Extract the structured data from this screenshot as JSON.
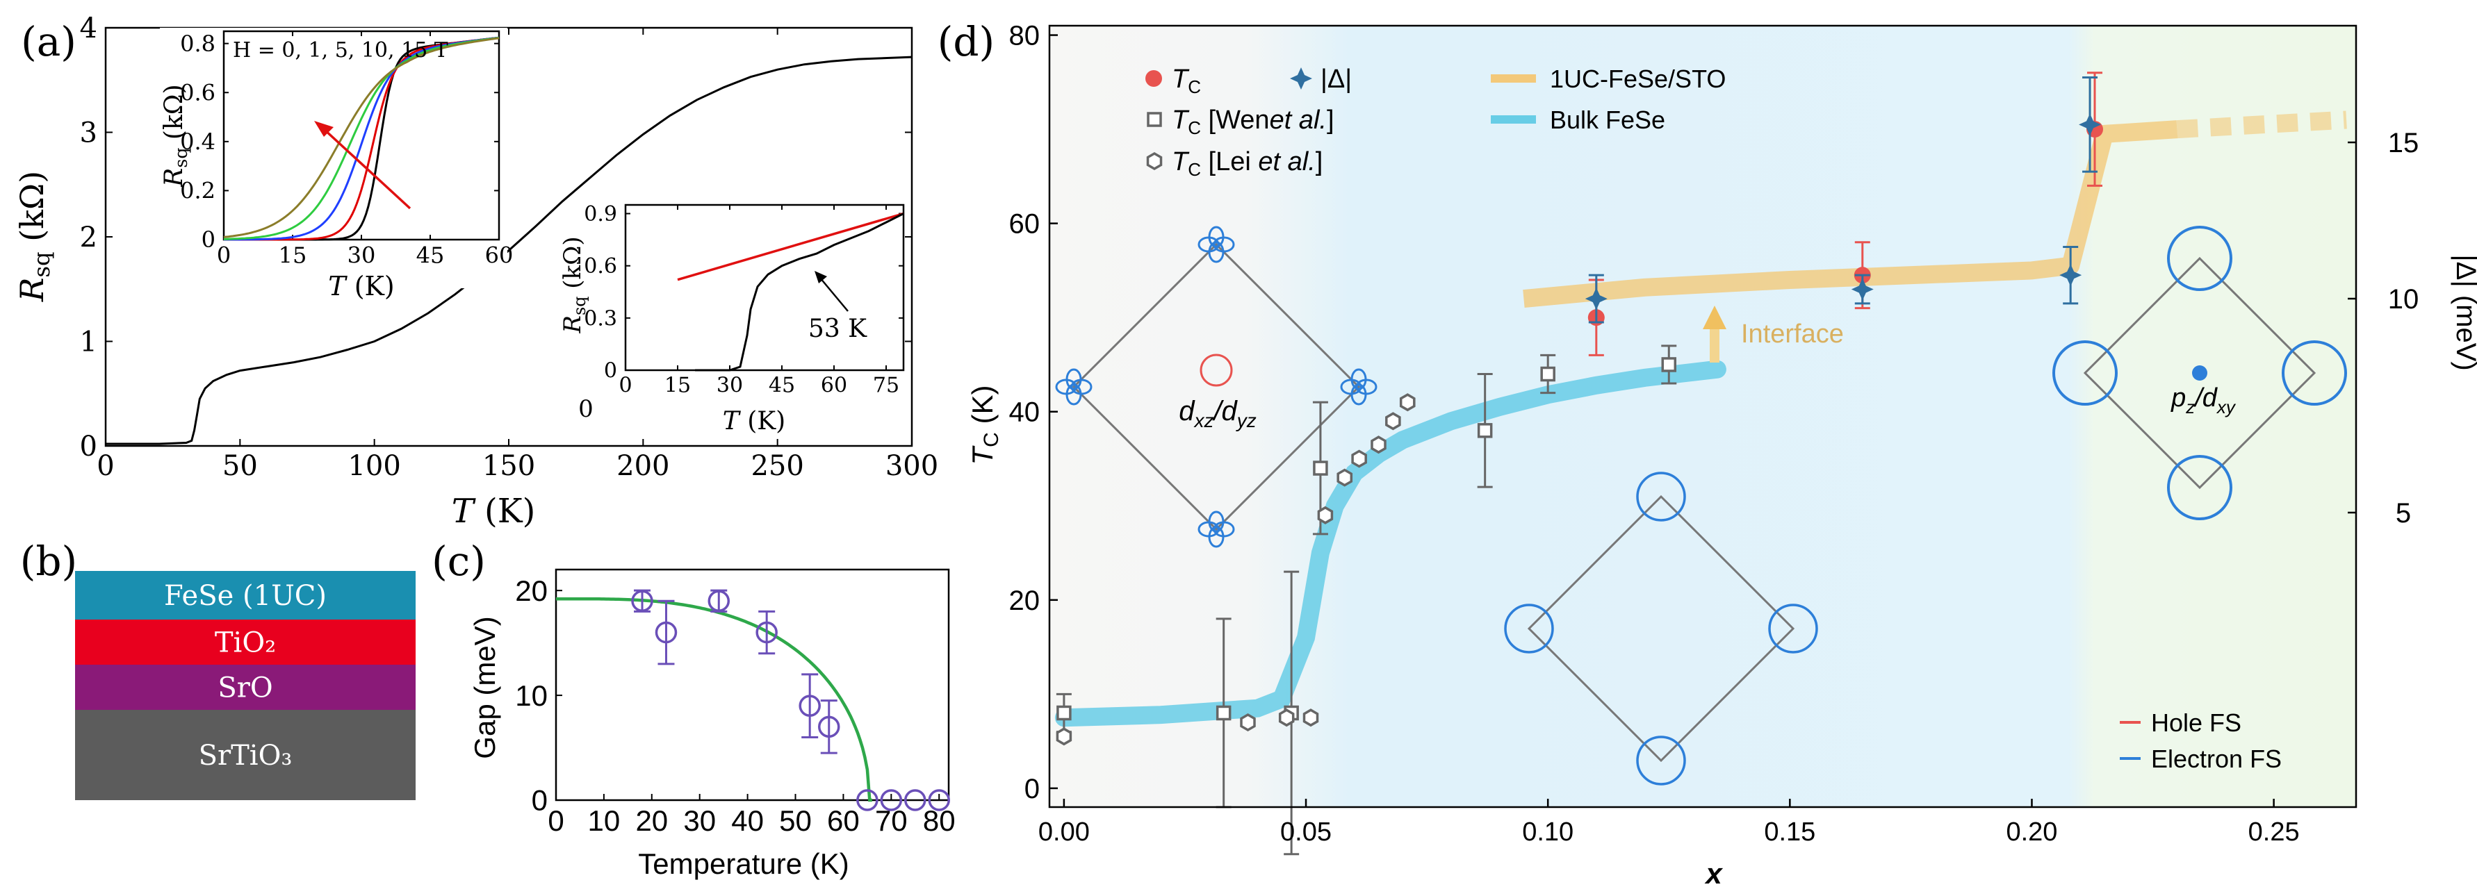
{
  "figure": {
    "a": {
      "label": "(a)",
      "xlabel": "T (K)",
      "ylabel": "R_sq (kΩ)",
      "xticks": [
        "0",
        "50",
        "100",
        "150",
        "200",
        "250",
        "300"
      ],
      "yticks": [
        "0",
        "1",
        "2",
        "3",
        "4"
      ],
      "xlim": [
        0,
        300
      ],
      "ylim": [
        0,
        4
      ],
      "curve": [
        [
          0,
          0.02
        ],
        [
          20,
          0.02
        ],
        [
          30,
          0.03
        ],
        [
          32,
          0.05
        ],
        [
          33,
          0.15
        ],
        [
          34,
          0.3
        ],
        [
          35,
          0.45
        ],
        [
          37,
          0.55
        ],
        [
          40,
          0.62
        ],
        [
          45,
          0.68
        ],
        [
          50,
          0.72
        ],
        [
          60,
          0.76
        ],
        [
          70,
          0.8
        ],
        [
          80,
          0.85
        ],
        [
          90,
          0.92
        ],
        [
          100,
          1.0
        ],
        [
          110,
          1.12
        ],
        [
          120,
          1.27
        ],
        [
          130,
          1.45
        ],
        [
          140,
          1.65
        ],
        [
          150,
          1.87
        ],
        [
          160,
          2.1
        ],
        [
          170,
          2.34
        ],
        [
          180,
          2.56
        ],
        [
          190,
          2.78
        ],
        [
          200,
          2.98
        ],
        [
          210,
          3.16
        ],
        [
          220,
          3.31
        ],
        [
          230,
          3.43
        ],
        [
          240,
          3.53
        ],
        [
          250,
          3.6
        ],
        [
          260,
          3.65
        ],
        [
          270,
          3.68
        ],
        [
          280,
          3.7
        ],
        [
          290,
          3.71
        ],
        [
          300,
          3.72
        ]
      ],
      "inset1": {
        "annotation": "H = 0, 1, 5, 10, 15 T",
        "xlabel": "T (K)",
        "ylabel": "R_sq (kΩ)",
        "xticks": [
          "0",
          "15",
          "30",
          "45",
          "60"
        ],
        "yticks": [
          "0",
          "0.2",
          "0.4",
          "0.6",
          "0.8"
        ],
        "xlim": [
          0,
          60
        ],
        "ylim": [
          0,
          0.85
        ],
        "series": [
          {
            "color": "#000000",
            "mid": 34,
            "w": 1.6
          },
          {
            "color": "#e00000",
            "mid": 32.5,
            "w": 2.4
          },
          {
            "color": "#1f3fff",
            "mid": 30,
            "w": 3.5
          },
          {
            "color": "#2ecc40",
            "mid": 27.5,
            "w": 4.6
          },
          {
            "color": "#8b7d2a",
            "mid": 25,
            "w": 5.8
          }
        ]
      },
      "inset2": {
        "annotation": "53 K",
        "xlabel": "T (K)",
        "ylabel": "R_sq (kΩ)",
        "xticks": [
          "0",
          "15",
          "30",
          "45",
          "60",
          "75"
        ],
        "yticks": [
          "0",
          "0.3",
          "0.6",
          "0.9"
        ],
        "xlim": [
          0,
          80
        ],
        "ylim": [
          0,
          0.95
        ],
        "zero_label": "0",
        "fit_line": [
          [
            15,
            0.52
          ],
          [
            80,
            0.9
          ]
        ],
        "curve": [
          [
            20,
            0
          ],
          [
            30,
            0
          ],
          [
            33,
            0.02
          ],
          [
            35,
            0.2
          ],
          [
            36,
            0.35
          ],
          [
            38,
            0.48
          ],
          [
            41,
            0.55
          ],
          [
            45,
            0.6
          ],
          [
            50,
            0.64
          ],
          [
            55,
            0.67
          ],
          [
            60,
            0.72
          ],
          [
            65,
            0.76
          ],
          [
            70,
            0.8
          ],
          [
            75,
            0.85
          ],
          [
            80,
            0.9
          ]
        ]
      }
    },
    "b": {
      "label": "(b)",
      "layers": [
        {
          "text": "FeSe (1UC)",
          "color": "#1a8fb0"
        },
        {
          "text": "TiO₂",
          "color": "#e8001e"
        },
        {
          "text": "SrO",
          "color": "#8a1a78"
        },
        {
          "text": "SrTiO₃",
          "color": "#5c5c5c"
        }
      ]
    },
    "c": {
      "label": "(c)",
      "xlabel": "Temperature (K)",
      "ylabel": "Gap (meV)",
      "xticks": [
        "0",
        "10",
        "20",
        "30",
        "40",
        "50",
        "60",
        "70",
        "80"
      ],
      "yticks": [
        "0",
        "10",
        "20"
      ],
      "xlim": [
        0,
        82
      ],
      "ylim": [
        0,
        22
      ],
      "points": [
        [
          18,
          19,
          1
        ],
        [
          23,
          16,
          3
        ],
        [
          34,
          19,
          1
        ],
        [
          44,
          16,
          2
        ],
        [
          53,
          9,
          3
        ],
        [
          57,
          7,
          2.5
        ],
        [
          65,
          0,
          0
        ],
        [
          70,
          0,
          0
        ],
        [
          75,
          0,
          0
        ],
        [
          80,
          0,
          0
        ]
      ],
      "fit_color": "#2ea84a",
      "point_color": "#6a4fb8"
    },
    "d": {
      "label": "(d)",
      "xlabel": "x",
      "ylabel": "T_C (K)",
      "ylabel_right": "|Δ| (meV)",
      "xticks": [
        "0.00",
        "0.05",
        "0.10",
        "0.15",
        "0.20",
        "0.25"
      ],
      "yticks": [
        "0",
        "20",
        "40",
        "60",
        "80"
      ],
      "yticks_right": [
        "5",
        "10",
        "15"
      ],
      "xlim": [
        -0.003,
        0.267
      ],
      "ylim": [
        -2,
        81
      ],
      "legend": {
        "tc": "T_C",
        "gap": "|Δ|",
        "wen": "T_C [Wen et al.]",
        "lei": "T_C [Lei et al.]",
        "line_1uc": "1UC-FeSe/STO",
        "line_bulk": "Bulk FeSe",
        "hole": "Hole FS",
        "electron": "Electron FS"
      },
      "annotations": {
        "interface": "Interface",
        "dxz": "d_xz/d_yz",
        "pz": "p_z/d_xy"
      },
      "colors": {
        "tc": "#e8534f",
        "gap": "#2f6fa0",
        "bulk": "#67cde6",
        "uc": "#f3c97a",
        "electron": "#2d7fd9",
        "hole": "#e8534f"
      },
      "bulk_curve": [
        [
          0.0,
          7.5
        ],
        [
          0.02,
          7.8
        ],
        [
          0.04,
          8.5
        ],
        [
          0.045,
          9.5
        ],
        [
          0.05,
          16
        ],
        [
          0.053,
          25
        ],
        [
          0.056,
          30
        ],
        [
          0.06,
          33.5
        ],
        [
          0.065,
          35.5
        ],
        [
          0.07,
          37
        ],
        [
          0.08,
          39
        ],
        [
          0.09,
          40.5
        ],
        [
          0.1,
          41.8
        ],
        [
          0.11,
          42.8
        ],
        [
          0.12,
          43.6
        ],
        [
          0.135,
          44.5
        ]
      ],
      "uc_curve": [
        [
          0.095,
          52
        ],
        [
          0.12,
          53.2
        ],
        [
          0.15,
          54
        ],
        [
          0.2,
          55
        ],
        [
          0.208,
          55.5
        ],
        [
          0.215,
          69.5
        ],
        [
          0.23,
          70
        ]
      ],
      "uc_dash": [
        [
          0.23,
          70
        ],
        [
          0.265,
          71
        ]
      ],
      "wen": [
        [
          0.0,
          8,
          2
        ],
        [
          0.033,
          8,
          10
        ],
        [
          0.047,
          8,
          15
        ],
        [
          0.053,
          34,
          7
        ],
        [
          0.087,
          38,
          6
        ],
        [
          0.1,
          44,
          2
        ],
        [
          0.125,
          45,
          2
        ]
      ],
      "lei": [
        [
          0.0,
          5.5
        ],
        [
          0.038,
          7
        ],
        [
          0.046,
          7.5
        ],
        [
          0.051,
          7.5
        ],
        [
          0.054,
          29
        ],
        [
          0.058,
          33
        ],
        [
          0.061,
          35
        ],
        [
          0.065,
          36.5
        ],
        [
          0.068,
          39
        ],
        [
          0.071,
          41
        ]
      ],
      "tc": [
        [
          0.11,
          50,
          4
        ],
        [
          0.165,
          54.5,
          3.5
        ],
        [
          0.213,
          70,
          6
        ]
      ],
      "gap": [
        [
          0.11,
          52,
          2.5
        ],
        [
          0.165,
          53,
          1.5
        ],
        [
          0.208,
          54.5,
          3
        ],
        [
          0.212,
          70.5,
          5
        ]
      ],
      "gap_uc": [
        [
          0.208,
          55,
          2.5
        ],
        [
          0.165,
          55,
          3
        ]
      ]
    }
  }
}
